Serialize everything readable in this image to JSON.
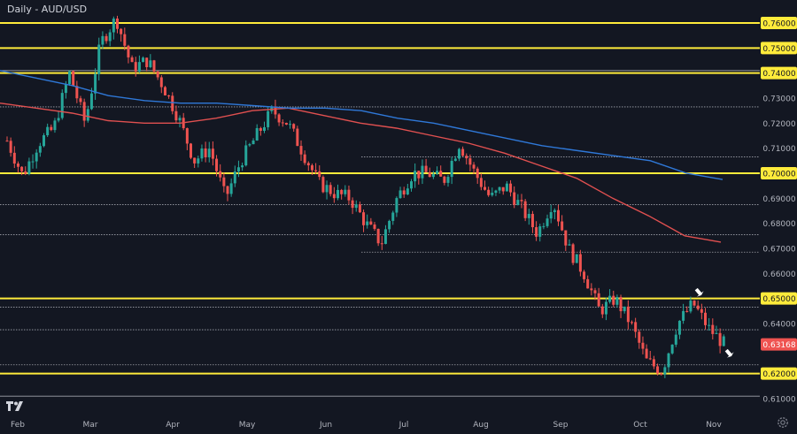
{
  "header": {
    "title": "Daily - AUD/USD"
  },
  "icons": {
    "logo": "tradingview-logo-icon",
    "settings": "gear-icon"
  },
  "colors": {
    "background": "#131722",
    "up": "#26a69a",
    "down": "#ef5350",
    "ma_fast": "#e05050",
    "ma_slow": "#2f78d8",
    "key_level": "#ffeb3b",
    "minor_level": "#d1d4dc",
    "price_badge": "#ef5350",
    "text": "#b2b5be"
  },
  "chart_data": {
    "type": "candlestick",
    "title": "Daily - AUD/USD",
    "ylim": [
      0.6,
      0.765
    ],
    "x_tick_labels": [
      "Feb",
      "Mar",
      "Apr",
      "May",
      "Jun",
      "Jul",
      "Aug",
      "Sep",
      "Oct",
      "Nov"
    ],
    "y_tick_labels": [
      "0.76000",
      "0.75000",
      "0.74000",
      "0.73000",
      "0.72000",
      "0.71000",
      "0.70000",
      "0.69000",
      "0.68000",
      "0.67000",
      "0.66000",
      "0.65000",
      "0.64000",
      "0.63168",
      "0.62000",
      "0.61000"
    ],
    "last_price": "0.63168",
    "key_levels": [
      0.76,
      0.75,
      0.74,
      0.7,
      0.65,
      0.62
    ],
    "minor_levels": [
      0.741,
      0.7265,
      0.7065,
      0.6875,
      0.6755,
      0.6685,
      0.6465,
      0.6375,
      0.6235,
      0.611
    ],
    "price_path": [
      [
        "Feb",
        0.713
      ],
      [
        "Feb",
        0.699
      ],
      [
        "Feb",
        0.712
      ],
      [
        "Mar",
        0.718
      ],
      [
        "Mar",
        0.74
      ],
      [
        "Mar",
        0.72
      ],
      [
        "Apr",
        0.752
      ],
      [
        "Apr",
        0.762
      ],
      [
        "Apr",
        0.742
      ],
      [
        "Apr",
        0.745
      ],
      [
        "Apr",
        0.735
      ],
      [
        "May",
        0.722
      ],
      [
        "May",
        0.705
      ],
      [
        "May",
        0.71
      ],
      [
        "May",
        0.69
      ],
      [
        "May",
        0.705
      ],
      [
        "Jun",
        0.715
      ],
      [
        "Jun",
        0.725
      ],
      [
        "Jun",
        0.72
      ],
      [
        "Jun",
        0.708
      ],
      [
        "Jun",
        0.696
      ],
      [
        "Jul",
        0.692
      ],
      [
        "Jul",
        0.69
      ],
      [
        "Jul",
        0.68
      ],
      [
        "Jul",
        0.672
      ],
      [
        "Jul",
        0.69
      ],
      [
        "Aug",
        0.7
      ],
      [
        "Aug",
        0.7
      ],
      [
        "Aug",
        0.697
      ],
      [
        "Aug",
        0.712
      ],
      [
        "Aug",
        0.7
      ],
      [
        "Sep",
        0.69
      ],
      [
        "Sep",
        0.695
      ],
      [
        "Sep",
        0.686
      ],
      [
        "Sep",
        0.676
      ],
      [
        "Sep",
        0.689
      ],
      [
        "Sep",
        0.67
      ],
      [
        "Sep",
        0.66
      ],
      [
        "Oct",
        0.645
      ],
      [
        "Oct",
        0.65
      ],
      [
        "Oct",
        0.64
      ],
      [
        "Oct",
        0.625
      ],
      [
        "Oct",
        0.621
      ],
      [
        "Oct",
        0.64
      ],
      [
        "Nov",
        0.648
      ],
      [
        "Nov",
        0.638
      ],
      [
        "Nov",
        0.6317
      ]
    ],
    "series": [
      {
        "values": [
          0.728,
          0.726,
          0.724,
          0.721,
          0.72,
          0.72,
          0.722,
          0.725,
          0.726,
          0.723,
          0.72,
          0.718,
          0.715,
          0.712,
          0.708,
          0.703,
          0.698,
          0.69,
          0.683,
          0.675,
          0.6725
        ]
      },
      {
        "values": [
          0.741,
          0.738,
          0.735,
          0.731,
          0.729,
          0.728,
          0.728,
          0.727,
          0.726,
          0.726,
          0.725,
          0.722,
          0.72,
          0.717,
          0.714,
          0.711,
          0.709,
          0.707,
          0.705,
          0.7,
          0.6975
        ]
      }
    ]
  }
}
